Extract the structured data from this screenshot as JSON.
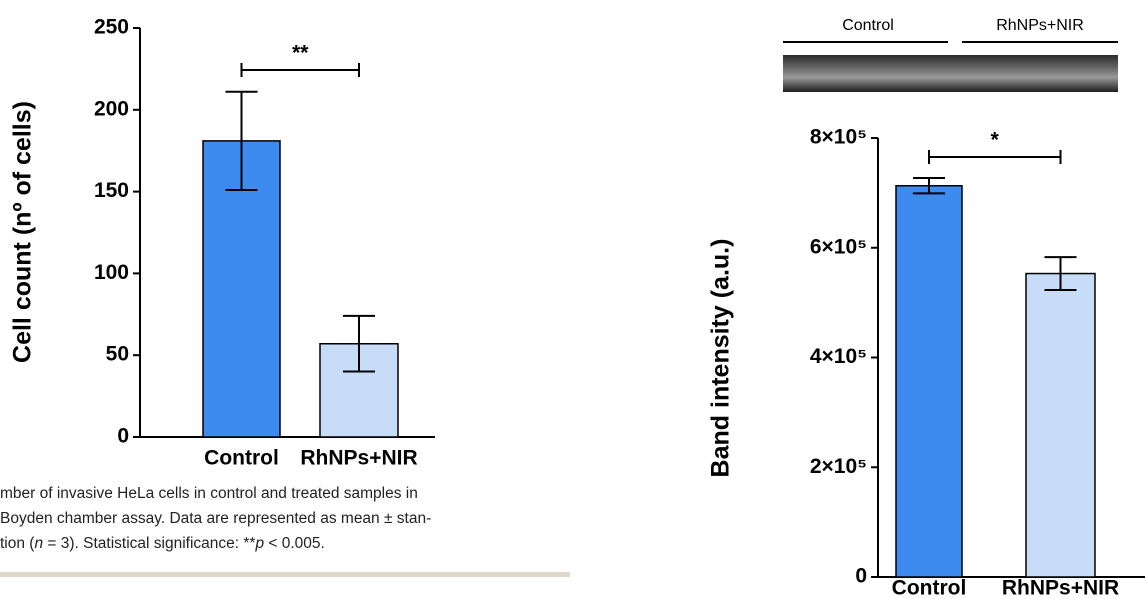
{
  "chart_data": [
    {
      "type": "bar",
      "ylabel": "Cell count (nº of cells)",
      "categories": [
        "Control",
        "RhNPs+NIR"
      ],
      "values": [
        181,
        57
      ],
      "errors": [
        30,
        17
      ],
      "colors": [
        "#3d8bef",
        "#c6dcf7"
      ],
      "ylim": [
        0,
        250
      ],
      "yticks": [
        0,
        50,
        100,
        150,
        200,
        250
      ],
      "significance": "**"
    },
    {
      "type": "bar",
      "ylabel": "Band intensity (a.u.)",
      "categories": [
        "Control",
        "RhNPs+NIR"
      ],
      "values": [
        713000,
        553000
      ],
      "errors": [
        14000,
        30000
      ],
      "colors": [
        "#3d8bef",
        "#c6dcf7"
      ],
      "ylim": [
        0,
        800000
      ],
      "yticks": [
        0,
        {
          "value": 200000,
          "label": "2×10⁵"
        },
        {
          "value": 400000,
          "label": "4×10⁵"
        },
        {
          "value": 600000,
          "label": "6×10⁵"
        },
        {
          "value": 800000,
          "label": "8×10⁵"
        }
      ],
      "significance": "*"
    }
  ],
  "blot_labels": [
    "Control",
    "RhNPs+NIR"
  ],
  "caption": {
    "lines": [
      "mber of invasive HeLa cells in control and treated samples in",
      "Boyden chamber assay. Data are represented as mean ± stan-"
    ],
    "last_line": [
      "tion (",
      "n",
      " = 3). Statistical significance: **",
      "p",
      " < 0.005."
    ]
  }
}
